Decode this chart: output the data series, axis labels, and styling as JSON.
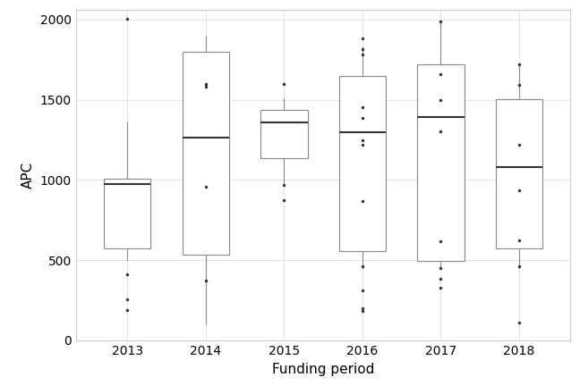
{
  "years": [
    "2013",
    "2014",
    "2015",
    "2016",
    "2017",
    "2018"
  ],
  "box_stats": [
    {
      "year": "2013",
      "q1": 570,
      "median": 975,
      "q3": 1010,
      "whisker_low": 500,
      "whisker_high": 1360,
      "fliers": [
        2005,
        410,
        255,
        190
      ]
    },
    {
      "year": "2014",
      "q1": 535,
      "median": 1265,
      "q3": 1800,
      "whisker_low": 100,
      "whisker_high": 1895,
      "fliers": [
        960,
        370,
        1580,
        1600
      ]
    },
    {
      "year": "2015",
      "q1": 1135,
      "median": 1360,
      "q3": 1435,
      "whisker_low": 970,
      "whisker_high": 1510,
      "fliers": [
        1600,
        970,
        875
      ]
    },
    {
      "year": "2016",
      "q1": 555,
      "median": 1295,
      "q3": 1650,
      "whisker_low": 450,
      "whisker_high": 1825,
      "fliers": [
        1880,
        1815,
        1780,
        1455,
        1385,
        1245,
        1220,
        870,
        460,
        310,
        200,
        185
      ]
    },
    {
      "year": "2017",
      "q1": 495,
      "median": 1390,
      "q3": 1720,
      "whisker_low": 450,
      "whisker_high": 1985,
      "fliers": [
        1990,
        1660,
        1500,
        1300,
        615,
        450,
        385,
        330
      ]
    },
    {
      "year": "2018",
      "q1": 570,
      "median": 1080,
      "q3": 1505,
      "whisker_low": 450,
      "whisker_high": 1720,
      "fliers": [
        1720,
        1590,
        1220,
        935,
        625,
        460,
        110
      ]
    }
  ],
  "xlabel": "Funding period",
  "ylabel": "APC",
  "ylim": [
    0,
    2060
  ],
  "yticks": [
    0,
    500,
    1000,
    1500,
    2000
  ],
  "box_color": "white",
  "box_edge_color": "#888888",
  "median_color": "#333333",
  "whisker_color": "#888888",
  "flier_color": "#333333",
  "grid_color": "#e0e0e0",
  "background_color": "#ffffff",
  "box_width": 0.6
}
